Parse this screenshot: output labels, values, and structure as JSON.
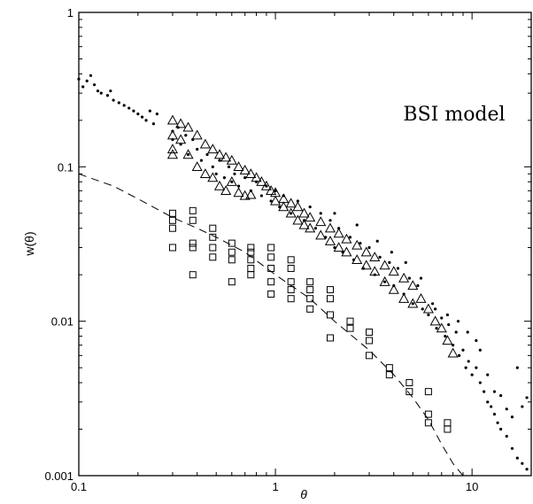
{
  "chart_data": {
    "type": "scatter",
    "title": "",
    "xlabel": "θ",
    "ylabel": "w(θ)",
    "xscale": "log",
    "yscale": "log",
    "xlim": [
      0.1,
      20
    ],
    "ylim": [
      0.001,
      1
    ],
    "grid": false,
    "annotation": "BSI model",
    "annotation_position": "top-right",
    "x_ticks": [
      {
        "value": 0.1,
        "label": "0.1"
      },
      {
        "value": 1,
        "label": "1"
      },
      {
        "value": 10,
        "label": "10"
      }
    ],
    "y_ticks": [
      {
        "value": 0.001,
        "label": "0.001"
      },
      {
        "value": 0.01,
        "label": "0.01"
      },
      {
        "value": 0.1,
        "label": "0.1"
      },
      {
        "value": 1,
        "label": "1"
      }
    ],
    "series": [
      {
        "marker": "dot",
        "points": [
          [
            0.1,
            0.37
          ],
          [
            0.105,
            0.33
          ],
          [
            0.11,
            0.36
          ],
          [
            0.115,
            0.39
          ],
          [
            0.12,
            0.34
          ],
          [
            0.125,
            0.31
          ],
          [
            0.13,
            0.3
          ],
          [
            0.14,
            0.29
          ],
          [
            0.145,
            0.31
          ],
          [
            0.15,
            0.27
          ],
          [
            0.16,
            0.26
          ],
          [
            0.17,
            0.25
          ],
          [
            0.18,
            0.24
          ],
          [
            0.19,
            0.23
          ],
          [
            0.2,
            0.22
          ],
          [
            0.21,
            0.21
          ],
          [
            0.22,
            0.2
          ],
          [
            0.23,
            0.23
          ],
          [
            0.24,
            0.19
          ],
          [
            0.25,
            0.22
          ],
          [
            0.3,
            0.17
          ],
          [
            0.3,
            0.15
          ],
          [
            0.32,
            0.18
          ],
          [
            0.33,
            0.14
          ],
          [
            0.35,
            0.16
          ],
          [
            0.36,
            0.12
          ],
          [
            0.38,
            0.15
          ],
          [
            0.4,
            0.13
          ],
          [
            0.42,
            0.11
          ],
          [
            0.45,
            0.12
          ],
          [
            0.48,
            0.1
          ],
          [
            0.5,
            0.09
          ],
          [
            0.52,
            0.11
          ],
          [
            0.55,
            0.085
          ],
          [
            0.58,
            0.1
          ],
          [
            0.6,
            0.08
          ],
          [
            0.62,
            0.09
          ],
          [
            0.65,
            0.075
          ],
          [
            0.7,
            0.085
          ],
          [
            0.75,
            0.07
          ],
          [
            0.8,
            0.08
          ],
          [
            0.85,
            0.065
          ],
          [
            0.9,
            0.075
          ],
          [
            0.95,
            0.06
          ],
          [
            1.0,
            0.07
          ],
          [
            1.05,
            0.055
          ],
          [
            1.1,
            0.065
          ],
          [
            1.2,
            0.05
          ],
          [
            1.3,
            0.06
          ],
          [
            1.4,
            0.045
          ],
          [
            1.5,
            0.055
          ],
          [
            1.6,
            0.04
          ],
          [
            1.7,
            0.05
          ],
          [
            1.8,
            0.035
          ],
          [
            1.9,
            0.045
          ],
          [
            2.0,
            0.03
          ],
          [
            2.1,
            0.04
          ],
          [
            2.2,
            0.028
          ],
          [
            2.4,
            0.035
          ],
          [
            2.5,
            0.025
          ],
          [
            2.7,
            0.032
          ],
          [
            2.8,
            0.022
          ],
          [
            3.0,
            0.03
          ],
          [
            3.2,
            0.02
          ],
          [
            3.4,
            0.026
          ],
          [
            3.6,
            0.018
          ],
          [
            3.8,
            0.024
          ],
          [
            4.0,
            0.017
          ],
          [
            4.2,
            0.022
          ],
          [
            4.5,
            0.015
          ],
          [
            4.8,
            0.019
          ],
          [
            5.0,
            0.013
          ],
          [
            5.3,
            0.017
          ],
          [
            5.6,
            0.012
          ],
          [
            6.0,
            0.011
          ],
          [
            6.3,
            0.013
          ],
          [
            6.6,
            0.009
          ],
          [
            7.0,
            0.0105
          ],
          [
            7.3,
            0.008
          ],
          [
            7.6,
            0.0095
          ],
          [
            8.0,
            0.007
          ],
          [
            8.3,
            0.0085
          ],
          [
            8.6,
            0.006
          ],
          [
            9.0,
            0.0065
          ],
          [
            9.3,
            0.005
          ],
          [
            9.6,
            0.0055
          ],
          [
            10.0,
            0.0045
          ],
          [
            10.5,
            0.005
          ],
          [
            11.0,
            0.004
          ],
          [
            11.5,
            0.0035
          ],
          [
            12.0,
            0.003
          ],
          [
            12.5,
            0.0028
          ],
          [
            13.0,
            0.0025
          ],
          [
            13.5,
            0.0022
          ],
          [
            14.0,
            0.002
          ],
          [
            15.0,
            0.0018
          ],
          [
            16.0,
            0.0015
          ],
          [
            17.0,
            0.0013
          ],
          [
            18.0,
            0.0012
          ],
          [
            19.0,
            0.0011
          ],
          [
            12.0,
            0.0045
          ],
          [
            13.0,
            0.0035
          ],
          [
            14.0,
            0.0033
          ],
          [
            15.0,
            0.0027
          ],
          [
            16.0,
            0.0024
          ],
          [
            17.0,
            0.005
          ],
          [
            18.0,
            0.0028
          ],
          [
            19.0,
            0.0032
          ],
          [
            11.0,
            0.0065
          ],
          [
            10.5,
            0.0075
          ],
          [
            9.5,
            0.0085
          ],
          [
            8.5,
            0.01
          ],
          [
            7.5,
            0.011
          ],
          [
            6.5,
            0.012
          ],
          [
            5.5,
            0.019
          ],
          [
            4.6,
            0.024
          ],
          [
            3.9,
            0.028
          ],
          [
            3.3,
            0.033
          ],
          [
            2.6,
            0.042
          ],
          [
            2.0,
            0.05
          ]
        ]
      },
      {
        "marker": "triangle",
        "points": [
          [
            0.3,
            0.2
          ],
          [
            0.3,
            0.16
          ],
          [
            0.3,
            0.13
          ],
          [
            0.3,
            0.12
          ],
          [
            0.33,
            0.19
          ],
          [
            0.33,
            0.15
          ],
          [
            0.36,
            0.18
          ],
          [
            0.36,
            0.12
          ],
          [
            0.4,
            0.16
          ],
          [
            0.4,
            0.1
          ],
          [
            0.44,
            0.14
          ],
          [
            0.44,
            0.09
          ],
          [
            0.48,
            0.13
          ],
          [
            0.48,
            0.085
          ],
          [
            0.52,
            0.12
          ],
          [
            0.52,
            0.075
          ],
          [
            0.56,
            0.115
          ],
          [
            0.56,
            0.07
          ],
          [
            0.6,
            0.11
          ],
          [
            0.6,
            0.08
          ],
          [
            0.65,
            0.1
          ],
          [
            0.65,
            0.068
          ],
          [
            0.7,
            0.095
          ],
          [
            0.7,
            0.065
          ],
          [
            0.75,
            0.09
          ],
          [
            0.75,
            0.066
          ],
          [
            0.8,
            0.085
          ],
          [
            0.85,
            0.08
          ],
          [
            0.9,
            0.075
          ],
          [
            0.95,
            0.07
          ],
          [
            1.0,
            0.068
          ],
          [
            1.0,
            0.06
          ],
          [
            1.1,
            0.062
          ],
          [
            1.1,
            0.055
          ],
          [
            1.2,
            0.058
          ],
          [
            1.2,
            0.05
          ],
          [
            1.3,
            0.055
          ],
          [
            1.3,
            0.045
          ],
          [
            1.4,
            0.05
          ],
          [
            1.4,
            0.042
          ],
          [
            1.5,
            0.047
          ],
          [
            1.5,
            0.04
          ],
          [
            1.7,
            0.044
          ],
          [
            1.7,
            0.036
          ],
          [
            1.9,
            0.04
          ],
          [
            1.9,
            0.033
          ],
          [
            2.1,
            0.037
          ],
          [
            2.1,
            0.03
          ],
          [
            2.3,
            0.034
          ],
          [
            2.3,
            0.028
          ],
          [
            2.6,
            0.031
          ],
          [
            2.6,
            0.025
          ],
          [
            2.9,
            0.028
          ],
          [
            2.9,
            0.023
          ],
          [
            3.2,
            0.026
          ],
          [
            3.2,
            0.021
          ],
          [
            3.6,
            0.023
          ],
          [
            3.6,
            0.018
          ],
          [
            4.0,
            0.021
          ],
          [
            4.0,
            0.016
          ],
          [
            4.5,
            0.019
          ],
          [
            4.5,
            0.014
          ],
          [
            5.0,
            0.017
          ],
          [
            5.0,
            0.013
          ],
          [
            5.5,
            0.014
          ],
          [
            6.0,
            0.012
          ],
          [
            6.5,
            0.01
          ],
          [
            7.0,
            0.009
          ],
          [
            7.5,
            0.0075
          ],
          [
            8.0,
            0.0062
          ]
        ]
      },
      {
        "marker": "square",
        "points": [
          [
            0.3,
            0.05
          ],
          [
            0.3,
            0.045
          ],
          [
            0.3,
            0.04
          ],
          [
            0.3,
            0.03
          ],
          [
            0.38,
            0.052
          ],
          [
            0.38,
            0.045
          ],
          [
            0.38,
            0.032
          ],
          [
            0.38,
            0.03
          ],
          [
            0.38,
            0.02
          ],
          [
            0.48,
            0.04
          ],
          [
            0.48,
            0.035
          ],
          [
            0.48,
            0.03
          ],
          [
            0.48,
            0.026
          ],
          [
            0.6,
            0.032
          ],
          [
            0.6,
            0.028
          ],
          [
            0.6,
            0.025
          ],
          [
            0.6,
            0.018
          ],
          [
            0.75,
            0.03
          ],
          [
            0.75,
            0.028
          ],
          [
            0.75,
            0.025
          ],
          [
            0.75,
            0.022
          ],
          [
            0.75,
            0.02
          ],
          [
            0.95,
            0.03
          ],
          [
            0.95,
            0.026
          ],
          [
            0.95,
            0.022
          ],
          [
            0.95,
            0.018
          ],
          [
            0.95,
            0.015
          ],
          [
            1.2,
            0.025
          ],
          [
            1.2,
            0.022
          ],
          [
            1.2,
            0.018
          ],
          [
            1.2,
            0.016
          ],
          [
            1.2,
            0.014
          ],
          [
            1.5,
            0.018
          ],
          [
            1.5,
            0.016
          ],
          [
            1.5,
            0.014
          ],
          [
            1.5,
            0.012
          ],
          [
            1.9,
            0.016
          ],
          [
            1.9,
            0.014
          ],
          [
            1.9,
            0.011
          ],
          [
            1.9,
            0.0078
          ],
          [
            2.4,
            0.01
          ],
          [
            2.4,
            0.009
          ],
          [
            3.0,
            0.0085
          ],
          [
            3.0,
            0.0075
          ],
          [
            3.0,
            0.006
          ],
          [
            3.8,
            0.005
          ],
          [
            3.8,
            0.0045
          ],
          [
            4.8,
            0.004
          ],
          [
            4.8,
            0.0035
          ],
          [
            6.0,
            0.0035
          ],
          [
            6.0,
            0.0025
          ],
          [
            6.0,
            0.0022
          ],
          [
            7.5,
            0.0022
          ],
          [
            7.5,
            0.002
          ]
        ]
      },
      {
        "marker": "dashed-line",
        "points": [
          [
            0.1,
            0.09
          ],
          [
            0.15,
            0.075
          ],
          [
            0.2,
            0.062
          ],
          [
            0.3,
            0.047
          ],
          [
            0.4,
            0.04
          ],
          [
            0.5,
            0.035
          ],
          [
            0.7,
            0.028
          ],
          [
            1.0,
            0.02
          ],
          [
            1.5,
            0.014
          ],
          [
            2.0,
            0.01
          ],
          [
            3.0,
            0.0065
          ],
          [
            4.0,
            0.0045
          ],
          [
            5.0,
            0.0032
          ],
          [
            6.0,
            0.0023
          ],
          [
            7.0,
            0.0016
          ],
          [
            8.0,
            0.0012
          ],
          [
            9.0,
            0.001
          ]
        ]
      }
    ]
  }
}
